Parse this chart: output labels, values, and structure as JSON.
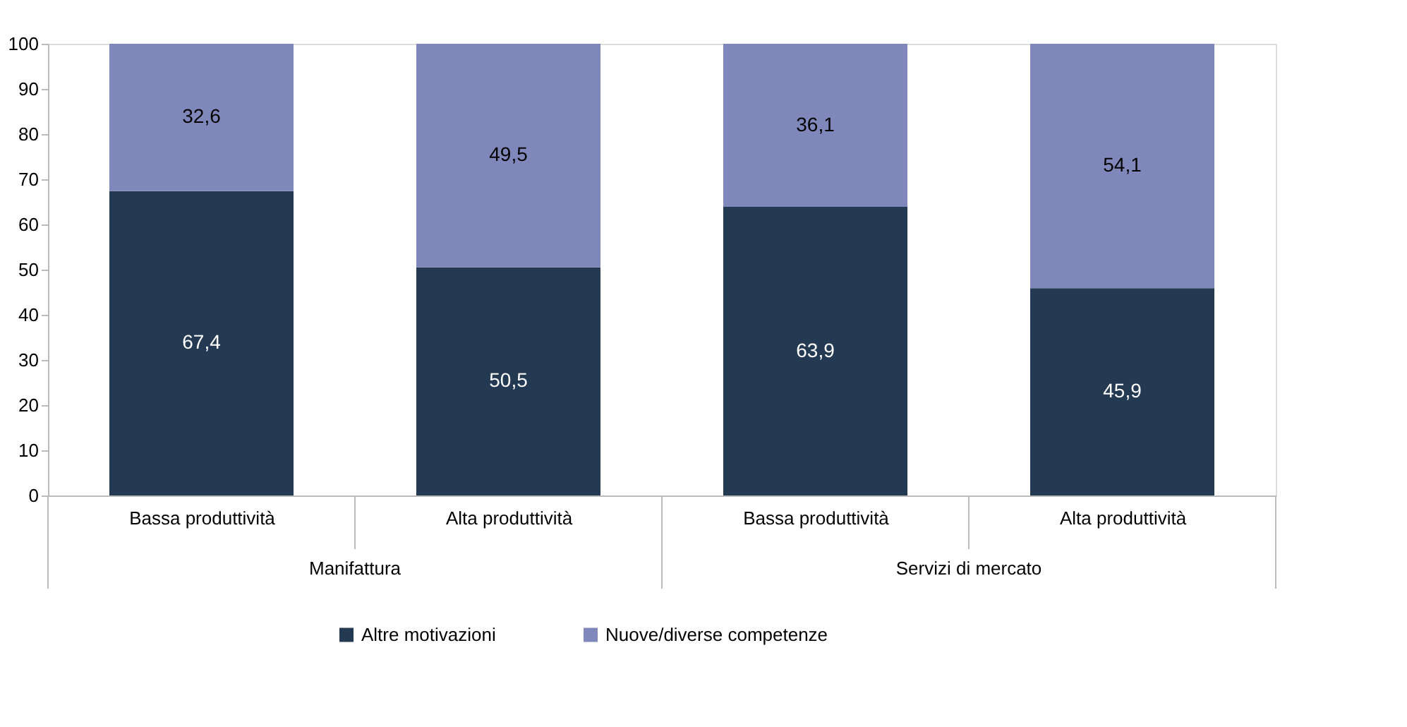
{
  "chart_data": {
    "type": "bar",
    "stacked": true,
    "categories": [
      "Bassa produttività",
      "Alta produttività",
      "Bassa produttività",
      "Alta produttività"
    ],
    "series": [
      {
        "name": "Altre motivazioni",
        "color": "#243a52",
        "values": [
          67.4,
          50.5,
          63.9,
          45.9
        ],
        "value_labels": [
          "67,4",
          "50,5",
          "63,9",
          "45,9"
        ]
      },
      {
        "name": "Nuove/diverse competenze",
        "color": "#8088bb",
        "values": [
          32.6,
          49.5,
          36.1,
          54.1
        ],
        "value_labels": [
          "32,6",
          "49,5",
          "36,1",
          "54,1"
        ]
      }
    ],
    "annotations": [
      "Manifattura",
      "Servizi di mercato"
    ],
    "ylim": [
      0,
      100
    ],
    "yticks": [
      0,
      10,
      20,
      30,
      40,
      50,
      60,
      70,
      80,
      90,
      100
    ],
    "grid": false,
    "legend": "bottom"
  }
}
